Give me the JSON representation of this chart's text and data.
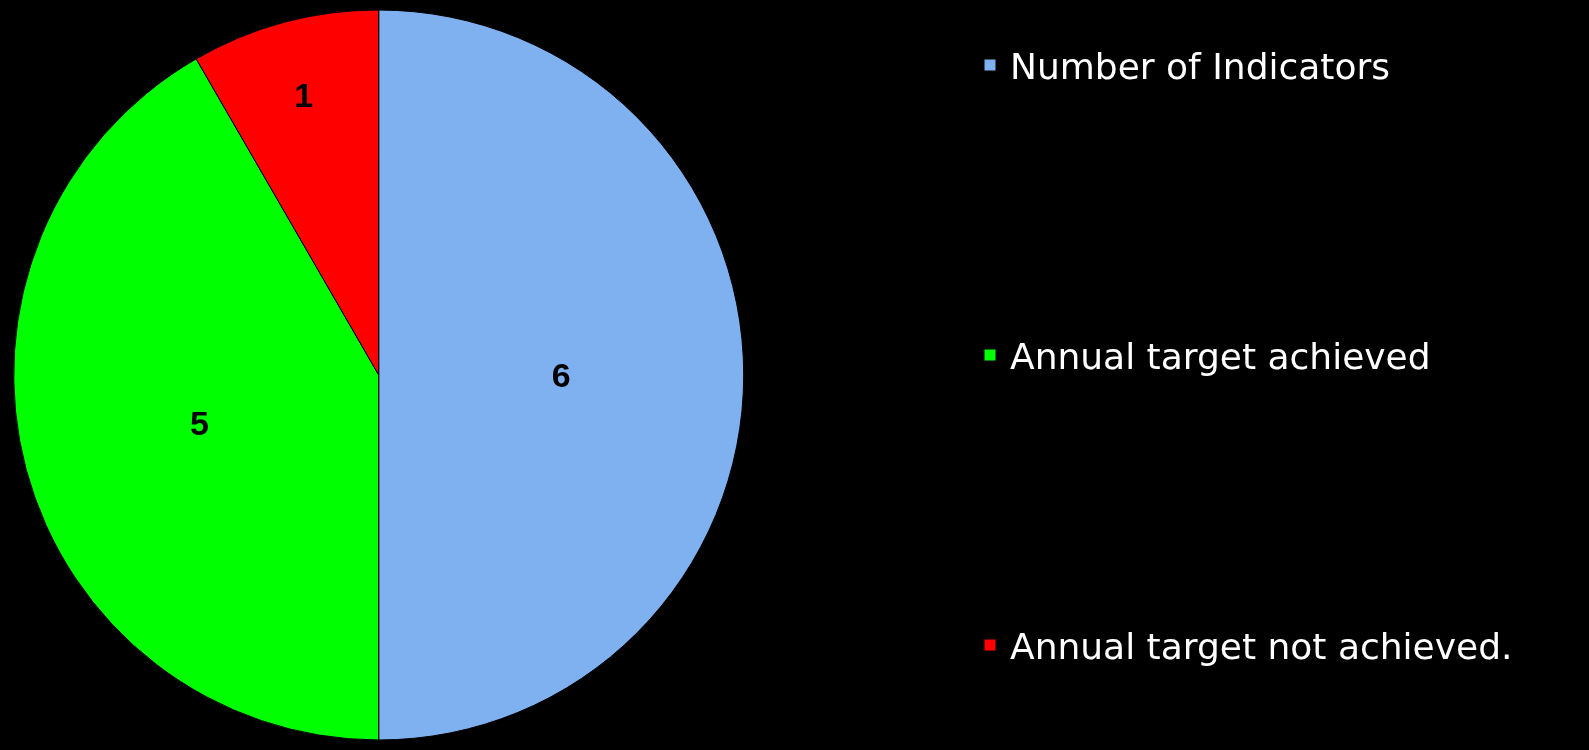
{
  "chart_data": {
    "type": "pie",
    "categories": [
      "Number of Indicators",
      "Annual target achieved",
      "Annual target not achieved."
    ],
    "values": [
      6,
      5,
      1
    ],
    "colors": [
      "#7fb0f0",
      "#00ff00",
      "#ff0000"
    ],
    "data_labels": true,
    "legend": "right"
  }
}
